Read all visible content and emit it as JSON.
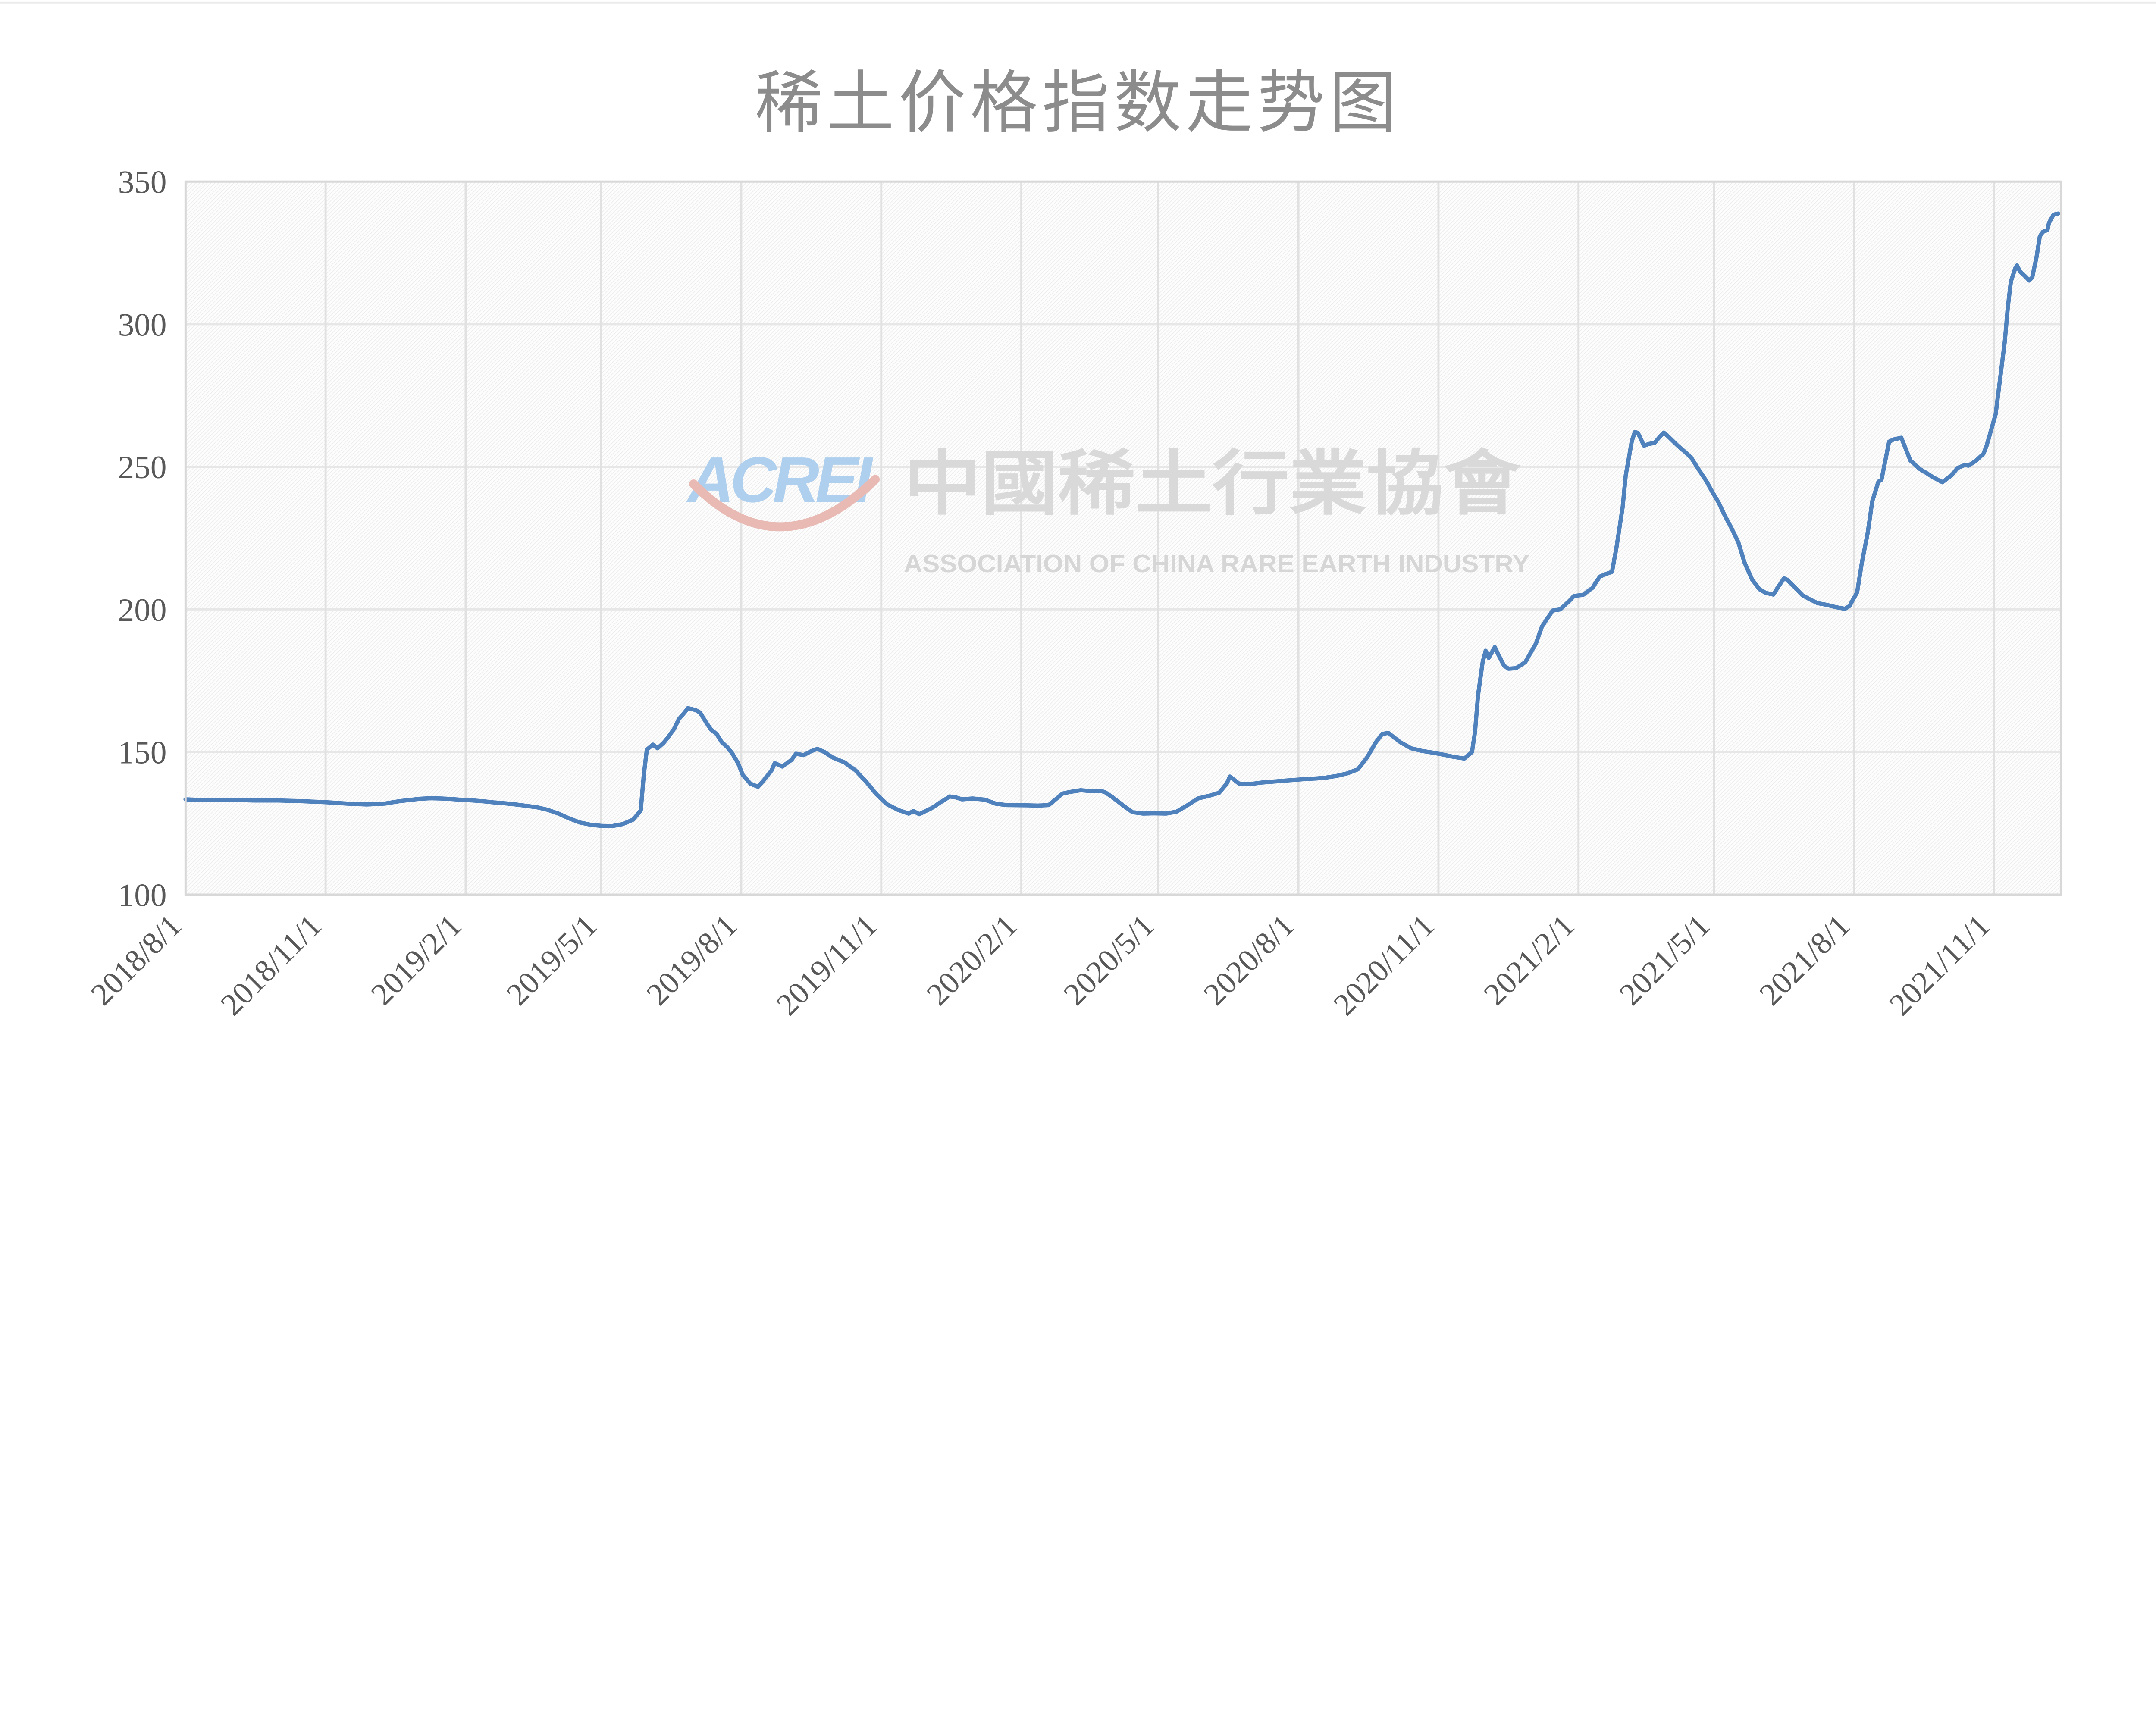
{
  "page": {
    "background": "#ffffff",
    "top_border_color": "#ebebeb"
  },
  "chart": {
    "title": "稀土价格指数走势图",
    "title_color": "#8c8c8c"
  },
  "watermark": {
    "logo_text": "ACREI",
    "logo_color": "#aecfed",
    "swoosh_color": "#e9bab4",
    "chinese": "中國稀土行業協會",
    "english": "ASSOCIATION OF CHINA RARE EARTH INDUSTRY",
    "chinese_color": "#d9d9d9",
    "english_color": "#d6d6d6"
  },
  "chart_data": {
    "type": "line",
    "title": "稀土价格指数走势图",
    "xlabel": "",
    "ylabel": "",
    "legend_position": "none",
    "grid": true,
    "ylim": [
      100,
      350
    ],
    "y_ticks": [
      100,
      150,
      200,
      250,
      300,
      350
    ],
    "x_tick_labels": [
      "2018/8/1",
      "2018/11/1",
      "2019/2/1",
      "2019/5/1",
      "2019/8/1",
      "2019/11/1",
      "2020/2/1",
      "2020/5/1",
      "2020/8/1",
      "2020/11/1",
      "2021/2/1",
      "2021/5/1",
      "2021/8/1",
      "2021/11/1"
    ],
    "x_range": [
      "2018/8/1",
      "2021/12/15"
    ],
    "colors": {
      "line": "#4f81bd",
      "h_grid": "#e7e7e7",
      "v_grid": "#e1e1e1",
      "plot_border": "#d8d8d8",
      "tick_label": "#595959",
      "plot_base": "#fdfdfd",
      "plot_stripe": "#ececec"
    },
    "series": [
      {
        "points": [
          [
            "2018-08-01",
            133.4
          ],
          [
            "2018-08-15",
            133.1
          ],
          [
            "2018-09-01",
            133.2
          ],
          [
            "2018-09-15",
            133.0
          ],
          [
            "2018-10-01",
            133.0
          ],
          [
            "2018-10-15",
            132.8
          ],
          [
            "2018-11-01",
            132.4
          ],
          [
            "2018-11-15",
            131.9
          ],
          [
            "2018-11-28",
            131.6
          ],
          [
            "2018-12-10",
            131.9
          ],
          [
            "2018-12-20",
            132.8
          ],
          [
            "2019-01-02",
            133.6
          ],
          [
            "2019-01-09",
            133.8
          ],
          [
            "2019-01-16",
            133.7
          ],
          [
            "2019-01-23",
            133.5
          ],
          [
            "2019-01-30",
            133.2
          ],
          [
            "2019-02-06",
            133.0
          ],
          [
            "2019-02-13",
            132.7
          ],
          [
            "2019-02-20",
            132.3
          ],
          [
            "2019-02-27",
            132.0
          ],
          [
            "2019-03-06",
            131.6
          ],
          [
            "2019-03-13",
            131.1
          ],
          [
            "2019-03-20",
            130.6
          ],
          [
            "2019-03-27",
            129.7
          ],
          [
            "2019-04-03",
            128.4
          ],
          [
            "2019-04-10",
            126.7
          ],
          [
            "2019-04-17",
            125.3
          ],
          [
            "2019-04-24",
            124.5
          ],
          [
            "2019-05-01",
            124.1
          ],
          [
            "2019-05-08",
            124.0
          ],
          [
            "2019-05-15",
            124.7
          ],
          [
            "2019-05-22",
            126.3
          ],
          [
            "2019-05-27",
            129.5
          ],
          [
            "2019-05-29",
            142.0
          ],
          [
            "2019-05-31",
            150.8
          ],
          [
            "2019-06-04",
            152.6
          ],
          [
            "2019-06-07",
            151.3
          ],
          [
            "2019-06-11",
            153.2
          ],
          [
            "2019-06-14",
            155.2
          ],
          [
            "2019-06-18",
            158.2
          ],
          [
            "2019-06-21",
            161.5
          ],
          [
            "2019-06-25",
            164.0
          ],
          [
            "2019-06-27",
            165.4
          ],
          [
            "2019-07-02",
            164.7
          ],
          [
            "2019-07-05",
            163.8
          ],
          [
            "2019-07-09",
            160.3
          ],
          [
            "2019-07-12",
            158.0
          ],
          [
            "2019-07-16",
            156.2
          ],
          [
            "2019-07-19",
            153.6
          ],
          [
            "2019-07-23",
            151.6
          ],
          [
            "2019-07-26",
            149.6
          ],
          [
            "2019-07-30",
            146.0
          ],
          [
            "2019-08-02",
            142.0
          ],
          [
            "2019-08-07",
            138.9
          ],
          [
            "2019-08-12",
            137.8
          ],
          [
            "2019-08-16",
            140.2
          ],
          [
            "2019-08-21",
            143.6
          ],
          [
            "2019-08-23",
            146.1
          ],
          [
            "2019-08-28",
            144.9
          ],
          [
            "2019-09-03",
            147.2
          ],
          [
            "2019-09-06",
            149.4
          ],
          [
            "2019-09-11",
            148.9
          ],
          [
            "2019-09-16",
            150.3
          ],
          [
            "2019-09-20",
            151.1
          ],
          [
            "2019-09-25",
            149.9
          ],
          [
            "2019-09-30",
            148.1
          ],
          [
            "2019-10-08",
            146.3
          ],
          [
            "2019-10-15",
            143.6
          ],
          [
            "2019-10-22",
            139.6
          ],
          [
            "2019-10-29",
            135.1
          ],
          [
            "2019-11-05",
            131.6
          ],
          [
            "2019-11-12",
            129.7
          ],
          [
            "2019-11-19",
            128.4
          ],
          [
            "2019-11-22",
            129.3
          ],
          [
            "2019-11-26",
            128.2
          ],
          [
            "2019-11-29",
            129.0
          ],
          [
            "2019-12-04",
            130.3
          ],
          [
            "2019-12-10",
            132.4
          ],
          [
            "2019-12-16",
            134.4
          ],
          [
            "2019-12-20",
            134.1
          ],
          [
            "2019-12-24",
            133.4
          ],
          [
            "2019-12-31",
            133.7
          ],
          [
            "2020-01-08",
            133.3
          ],
          [
            "2020-01-15",
            131.9
          ],
          [
            "2020-01-22",
            131.4
          ],
          [
            "2020-02-05",
            131.3
          ],
          [
            "2020-02-12",
            131.2
          ],
          [
            "2020-02-19",
            131.4
          ],
          [
            "2020-02-24",
            133.6
          ],
          [
            "2020-02-28",
            135.4
          ],
          [
            "2020-03-04",
            136.0
          ],
          [
            "2020-03-11",
            136.6
          ],
          [
            "2020-03-17",
            136.3
          ],
          [
            "2020-03-24",
            136.4
          ],
          [
            "2020-03-27",
            135.9
          ],
          [
            "2020-04-01",
            134.1
          ],
          [
            "2020-04-08",
            131.2
          ],
          [
            "2020-04-14",
            128.9
          ],
          [
            "2020-04-21",
            128.4
          ],
          [
            "2020-04-28",
            128.5
          ],
          [
            "2020-05-06",
            128.4
          ],
          [
            "2020-05-13",
            129.1
          ],
          [
            "2020-05-20",
            131.3
          ],
          [
            "2020-05-27",
            133.7
          ],
          [
            "2020-06-03",
            134.6
          ],
          [
            "2020-06-10",
            135.7
          ],
          [
            "2020-06-15",
            139.0
          ],
          [
            "2020-06-17",
            141.4
          ],
          [
            "2020-06-23",
            138.9
          ],
          [
            "2020-06-30",
            138.7
          ],
          [
            "2020-07-08",
            139.3
          ],
          [
            "2020-07-15",
            139.6
          ],
          [
            "2020-07-22",
            139.9
          ],
          [
            "2020-07-29",
            140.2
          ],
          [
            "2020-08-05",
            140.5
          ],
          [
            "2020-08-12",
            140.7
          ],
          [
            "2020-08-19",
            141.0
          ],
          [
            "2020-08-26",
            141.6
          ],
          [
            "2020-09-02",
            142.5
          ],
          [
            "2020-09-09",
            143.9
          ],
          [
            "2020-09-15",
            148.0
          ],
          [
            "2020-09-21",
            153.5
          ],
          [
            "2020-09-25",
            156.3
          ],
          [
            "2020-09-29",
            156.7
          ],
          [
            "2020-10-07",
            153.4
          ],
          [
            "2020-10-14",
            151.3
          ],
          [
            "2020-10-21",
            150.4
          ],
          [
            "2020-10-28",
            149.8
          ],
          [
            "2020-11-04",
            149.1
          ],
          [
            "2020-11-11",
            148.3
          ],
          [
            "2020-11-18",
            147.7
          ],
          [
            "2020-11-23",
            150.0
          ],
          [
            "2020-11-25",
            157.0
          ],
          [
            "2020-11-27",
            170.0
          ],
          [
            "2020-11-30",
            181.5
          ],
          [
            "2020-12-02",
            185.5
          ],
          [
            "2020-12-04",
            183.0
          ],
          [
            "2020-12-08",
            186.8
          ],
          [
            "2020-12-10",
            184.5
          ],
          [
            "2020-12-14",
            180.3
          ],
          [
            "2020-12-17",
            179.2
          ],
          [
            "2020-12-22",
            179.4
          ],
          [
            "2020-12-28",
            181.5
          ],
          [
            "2021-01-04",
            188.0
          ],
          [
            "2021-01-08",
            194.0
          ],
          [
            "2021-01-13",
            198.0
          ],
          [
            "2021-01-15",
            199.6
          ],
          [
            "2021-01-20",
            200.0
          ],
          [
            "2021-01-26",
            203.0
          ],
          [
            "2021-01-29",
            204.7
          ],
          [
            "2021-02-04",
            205.1
          ],
          [
            "2021-02-10",
            207.5
          ],
          [
            "2021-02-15",
            211.5
          ],
          [
            "2021-02-19",
            212.4
          ],
          [
            "2021-02-23",
            213.2
          ],
          [
            "2021-02-26",
            222.0
          ],
          [
            "2021-03-02",
            236.0
          ],
          [
            "2021-03-04",
            247.0
          ],
          [
            "2021-03-08",
            259.0
          ],
          [
            "2021-03-10",
            262.2
          ],
          [
            "2021-03-12",
            261.9
          ],
          [
            "2021-03-16",
            257.4
          ],
          [
            "2021-03-19",
            258.0
          ],
          [
            "2021-03-23",
            258.4
          ],
          [
            "2021-03-26",
            260.3
          ],
          [
            "2021-03-29",
            262.0
          ],
          [
            "2021-04-01",
            260.6
          ],
          [
            "2021-04-07",
            257.5
          ],
          [
            "2021-04-12",
            255.2
          ],
          [
            "2021-04-16",
            253.2
          ],
          [
            "2021-04-21",
            249.0
          ],
          [
            "2021-04-26",
            245.0
          ],
          [
            "2021-04-29",
            242.0
          ],
          [
            "2021-05-04",
            237.5
          ],
          [
            "2021-05-08",
            233.0
          ],
          [
            "2021-05-12",
            229.0
          ],
          [
            "2021-05-17",
            223.5
          ],
          [
            "2021-05-21",
            216.5
          ],
          [
            "2021-05-26",
            210.5
          ],
          [
            "2021-05-31",
            207.0
          ],
          [
            "2021-06-04",
            205.8
          ],
          [
            "2021-06-09",
            205.2
          ],
          [
            "2021-06-12",
            207.8
          ],
          [
            "2021-06-16",
            210.9
          ],
          [
            "2021-06-18",
            210.4
          ],
          [
            "2021-06-23",
            207.8
          ],
          [
            "2021-06-28",
            205.0
          ],
          [
            "2021-07-02",
            203.8
          ],
          [
            "2021-07-08",
            202.2
          ],
          [
            "2021-07-14",
            201.6
          ],
          [
            "2021-07-20",
            200.8
          ],
          [
            "2021-07-26",
            200.2
          ],
          [
            "2021-07-29",
            201.2
          ],
          [
            "2021-08-03",
            206.0
          ],
          [
            "2021-08-06",
            216.0
          ],
          [
            "2021-08-10",
            227.0
          ],
          [
            "2021-08-13",
            238.0
          ],
          [
            "2021-08-17",
            244.8
          ],
          [
            "2021-08-19",
            245.5
          ],
          [
            "2021-08-24",
            258.8
          ],
          [
            "2021-08-27",
            259.6
          ],
          [
            "2021-09-01",
            260.2
          ],
          [
            "2021-09-07",
            252.2
          ],
          [
            "2021-09-13",
            249.3
          ],
          [
            "2021-09-17",
            248.0
          ],
          [
            "2021-09-22",
            246.3
          ],
          [
            "2021-09-28",
            244.6
          ],
          [
            "2021-10-04",
            247.0
          ],
          [
            "2021-10-08",
            249.6
          ],
          [
            "2021-10-13",
            250.7
          ],
          [
            "2021-10-15",
            250.4
          ],
          [
            "2021-10-20",
            252.1
          ],
          [
            "2021-10-25",
            254.6
          ],
          [
            "2021-10-27",
            257.3
          ],
          [
            "2021-10-29",
            261.0
          ],
          [
            "2021-11-02",
            268.5
          ],
          [
            "2021-11-04",
            277.0
          ],
          [
            "2021-11-08",
            294.0
          ],
          [
            "2021-11-10",
            306.0
          ],
          [
            "2021-11-12",
            315.0
          ],
          [
            "2021-11-15",
            319.8
          ],
          [
            "2021-11-16",
            320.6
          ],
          [
            "2021-11-18",
            318.5
          ],
          [
            "2021-11-22",
            316.5
          ],
          [
            "2021-11-24",
            315.3
          ],
          [
            "2021-11-26",
            316.4
          ],
          [
            "2021-11-29",
            324.0
          ],
          [
            "2021-12-01",
            330.8
          ],
          [
            "2021-12-03",
            332.4
          ],
          [
            "2021-12-06",
            333.0
          ],
          [
            "2021-12-07",
            335.5
          ],
          [
            "2021-12-08",
            336.5
          ],
          [
            "2021-12-10",
            338.4
          ],
          [
            "2021-12-13",
            338.8
          ]
        ]
      }
    ]
  }
}
